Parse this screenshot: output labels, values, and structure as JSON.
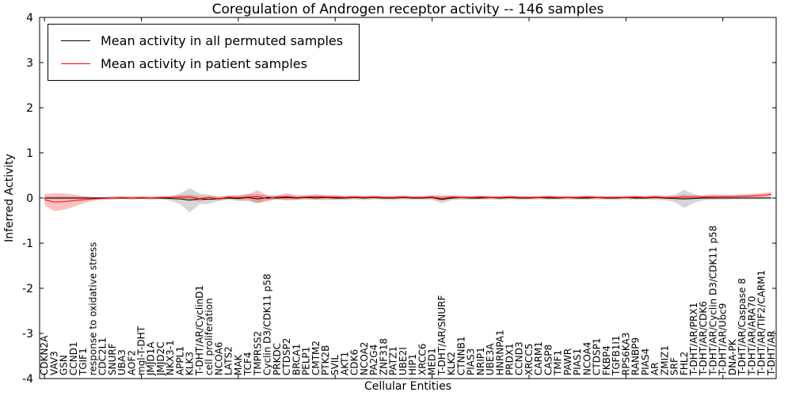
{
  "chart_data": {
    "type": "line",
    "title": "Coregulation of Androgen receptor activity -- 146 samples",
    "xlabel": "Cellular Entities",
    "ylabel": "Inferred Activity",
    "ylim": [
      -4,
      4
    ],
    "yticks": [
      -4,
      -3,
      -2,
      -1,
      0,
      1,
      2,
      3,
      4
    ],
    "xtick_indices": [
      0,
      10,
      20,
      30,
      40,
      50,
      60,
      70
    ],
    "grid": false,
    "legend_position": "upper left",
    "x_tick_label_rotation": 90,
    "categories": [
      "CDKN2A",
      "VAV3",
      "GSN",
      "CCND1",
      "TGIF1",
      "response to oxidative stress",
      "CDC2L1",
      "SNURF",
      "UBA3",
      "AOF2",
      "mgl-T-DHT",
      "JMJD1A",
      "JMJD2C",
      "NKX3-1",
      "APPL1",
      "KLK3",
      "T-DHT/AR/CyclinD1",
      "cell proliferation",
      "NCOA6",
      "LATS2",
      "MAK",
      "TCF4",
      "TMPRSS2",
      "Cyclin D3/CDK11 p58",
      "PRKDC",
      "CTDSP2",
      "BRCA1",
      "PELP1",
      "CMTM2",
      "PTK2B",
      "SVIL",
      "AKT1",
      "CDK6",
      "NCOA2",
      "PA2G4",
      "ZNF318",
      "PATZ1",
      "UBE2I",
      "HIP1",
      "XRCC6",
      "MED1",
      "T-DHT/AR/SNURF",
      "KLK2",
      "CTNNB1",
      "PIAS3",
      "NRIP1",
      "UBE3A",
      "HNRNPA1",
      "PRDX1",
      "CCND3",
      "XRCC5",
      "CARM1",
      "CASP8",
      "TMF1",
      "PAWR",
      "PIAS1",
      "NCOA4",
      "CTDSP1",
      "FKBP4",
      "TGFB1I1",
      "RPS6KA3",
      "RANBP9",
      "PIAS4",
      "AR",
      "ZMIZ1",
      "SRF",
      "FHL2",
      "T-DHT/AR/PRX1",
      "T-DHT/AR/CDK6",
      "T-DHT/AR/Cyclin D3/CDK11 p58",
      "T-DHT/AR/Ubc9",
      "DNA-PK",
      "T-DHT/AR/Caspase 8",
      "T-DHT/AR/ARA70",
      "T-DHT/AR/TIF2/CARM1",
      "T-DHT/AR"
    ],
    "series": [
      {
        "id": "permuted",
        "name": "Mean activity in all permuted samples",
        "color": "#000000",
        "band_color": "#000000",
        "band_opacity": 0.16,
        "values": [
          0,
          0,
          0,
          0,
          0,
          0,
          0,
          0,
          0,
          0,
          0,
          0,
          0,
          -0.01,
          -0.02,
          -0.05,
          -0.02,
          -0.03,
          -0.01,
          0,
          -0.01,
          0.01,
          -0.02,
          0.01,
          0,
          0.01,
          0,
          0.01,
          0,
          0.01,
          0,
          0,
          0.01,
          0,
          0.01,
          0,
          0,
          0.01,
          0,
          0,
          0.01,
          -0.03,
          0,
          0.01,
          0,
          0,
          0.01,
          0,
          0.01,
          0,
          0,
          0.01,
          0,
          0,
          0.01,
          0,
          0,
          0.01,
          0,
          0,
          0.01,
          0,
          0,
          0.01,
          0,
          -0.01,
          -0.02,
          -0.01,
          0,
          0,
          0,
          0,
          0,
          0,
          0,
          0
        ],
        "band_halfwidth": [
          0.03,
          0.03,
          0.03,
          0.03,
          0.03,
          0.02,
          0.02,
          0.03,
          0.02,
          0.03,
          0.02,
          0.03,
          0.03,
          0.05,
          0.12,
          0.27,
          0.12,
          0.1,
          0.05,
          0.04,
          0.06,
          0.08,
          0.1,
          0.06,
          0.04,
          0.06,
          0.04,
          0.05,
          0.04,
          0.06,
          0.04,
          0.05,
          0.04,
          0.05,
          0.04,
          0.04,
          0.05,
          0.04,
          0.04,
          0.04,
          0.05,
          0.09,
          0.05,
          0.05,
          0.04,
          0.04,
          0.04,
          0.04,
          0.04,
          0.04,
          0.04,
          0.04,
          0.04,
          0.04,
          0.04,
          0.04,
          0.04,
          0.04,
          0.04,
          0.04,
          0.04,
          0.04,
          0.04,
          0.05,
          0.05,
          0.08,
          0.2,
          0.1,
          0.05,
          0.04,
          0.04,
          0.03,
          0.03,
          0.03,
          0.03,
          0.03
        ]
      },
      {
        "id": "patient",
        "name": "Mean activity in patient samples",
        "color": "#ff0000",
        "band_color": "#ff0000",
        "band_opacity": 0.25,
        "values": [
          -0.04,
          -0.09,
          -0.08,
          -0.06,
          -0.04,
          -0.02,
          -0.01,
          0,
          0.01,
          0,
          0.01,
          0,
          0.01,
          0.01,
          0.02,
          0.02,
          -0.02,
          0.01,
          -0.02,
          0.02,
          0.01,
          0.02,
          0.03,
          -0.01,
          0.02,
          0.03,
          0.01,
          0.02,
          0.03,
          0.02,
          0.02,
          0.01,
          0.02,
          0.01,
          0.02,
          0.01,
          0.01,
          0.02,
          0.01,
          0.01,
          0.02,
          -0.01,
          0.02,
          0.01,
          0.01,
          0.02,
          0.01,
          0.01,
          0.02,
          0.01,
          0.01,
          0.01,
          0.02,
          0.01,
          0.01,
          0.01,
          0.02,
          0.01,
          0.01,
          0.01,
          0.01,
          0.02,
          0.01,
          0.02,
          0.01,
          0.01,
          0.02,
          0.02,
          0.02,
          0.03,
          0.03,
          0.03,
          0.04,
          0.05,
          0.06,
          0.08
        ],
        "band_halfwidth": [
          0.12,
          0.2,
          0.18,
          0.14,
          0.08,
          0.04,
          0.03,
          0.03,
          0.03,
          0.03,
          0.03,
          0.03,
          0.03,
          0.03,
          0.04,
          0.05,
          0.06,
          0.04,
          0.04,
          0.04,
          0.05,
          0.06,
          0.14,
          0.06,
          0.04,
          0.08,
          0.05,
          0.04,
          0.06,
          0.04,
          0.05,
          0.03,
          0.04,
          0.03,
          0.04,
          0.03,
          0.03,
          0.04,
          0.03,
          0.03,
          0.04,
          0.05,
          0.04,
          0.03,
          0.03,
          0.04,
          0.03,
          0.03,
          0.04,
          0.03,
          0.03,
          0.03,
          0.04,
          0.03,
          0.03,
          0.03,
          0.04,
          0.03,
          0.03,
          0.03,
          0.03,
          0.04,
          0.03,
          0.04,
          0.03,
          0.03,
          0.05,
          0.04,
          0.04,
          0.05,
          0.04,
          0.04,
          0.04,
          0.04,
          0.05,
          0.05
        ]
      }
    ]
  }
}
